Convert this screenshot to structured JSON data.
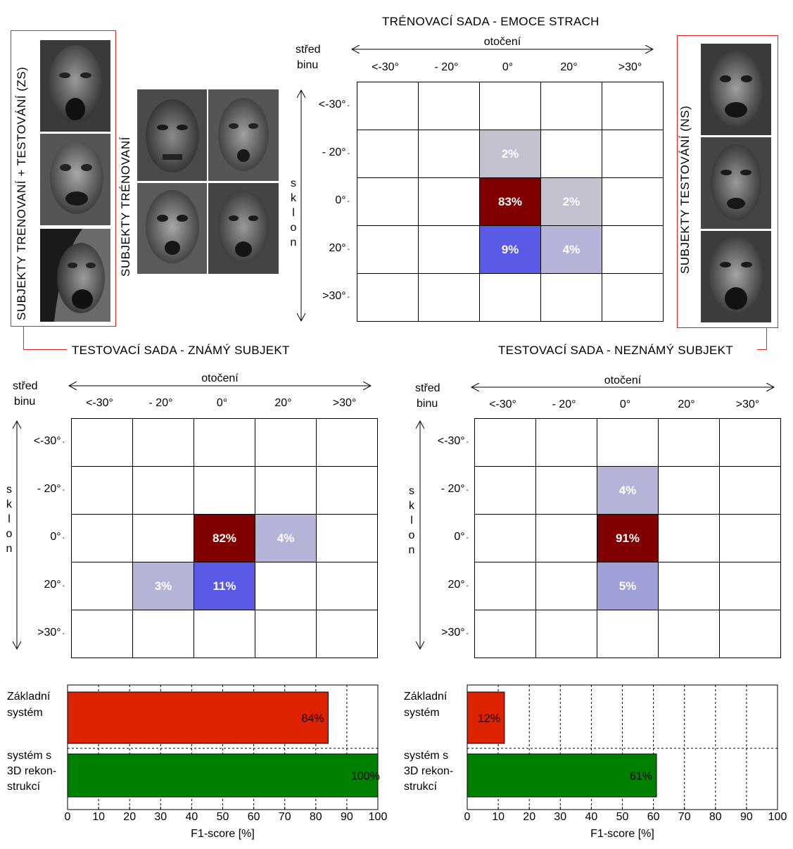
{
  "top_title": "TRÉNOVACÍ SADA - EMOCE STRACH",
  "left_panel_label": "SUBJEKTY TRENOVANÍ + TESTOVÁNÍ (ZS)",
  "middle_panel_label": "SUBJEKTY TRÉNOVANÍ",
  "right_panel_label": "SUBJEKTY TESTOVÁNÍ  (NS)",
  "known_title": "TESTOVACÍ SADA - ZNÁMÝ SUBJEKT",
  "unknown_title": "TESTOVACÍ SADA - NEZNÁMÝ SUBJEKT",
  "axis": {
    "col_header": "otočení",
    "row_header_line1": "střed",
    "row_header_line2": "binu",
    "row_axis_label": [
      "s",
      "k",
      "l",
      "o",
      "n"
    ],
    "col_labels": [
      "<-30°",
      "- 20°",
      "0°",
      "20°",
      ">30°"
    ],
    "row_labels": [
      "<-30°",
      "- 20°",
      "0°",
      "20°",
      ">30°"
    ]
  },
  "colors": {
    "dark_red": "#800000",
    "blue": "#5a5ae6",
    "lavender": "#b4b4d8",
    "lavender_light": "#c4c0d0",
    "bar_red": "#dd2200",
    "bar_green": "#008000",
    "frame_red": "#dd2222"
  },
  "chart_data": [
    {
      "type": "heatmap",
      "title": "TRÉNOVACÍ SADA - EMOCE STRACH",
      "xlabel": "otočení",
      "ylabel": "sklon",
      "x": [
        "<-30°",
        "- 20°",
        "0°",
        "20°",
        ">30°"
      ],
      "y": [
        "<-30°",
        "- 20°",
        "0°",
        "20°",
        ">30°"
      ],
      "cells": [
        {
          "row": 1,
          "col": 2,
          "value": 2,
          "label": "2%",
          "color": "#c4c0d0"
        },
        {
          "row": 2,
          "col": 2,
          "value": 83,
          "label": "83%",
          "color": "#800000"
        },
        {
          "row": 2,
          "col": 3,
          "value": 2,
          "label": "2%",
          "color": "#c4c0d0"
        },
        {
          "row": 3,
          "col": 2,
          "value": 9,
          "label": "9%",
          "color": "#5a5ae6"
        },
        {
          "row": 3,
          "col": 3,
          "value": 4,
          "label": "4%",
          "color": "#b4b4d8"
        }
      ]
    },
    {
      "type": "heatmap",
      "title": "TESTOVACÍ SADA - ZNÁMÝ SUBJEKT",
      "xlabel": "otočení",
      "ylabel": "sklon",
      "x": [
        "<-30°",
        "- 20°",
        "0°",
        "20°",
        ">30°"
      ],
      "y": [
        "<-30°",
        "- 20°",
        "0°",
        "20°",
        ">30°"
      ],
      "cells": [
        {
          "row": 2,
          "col": 2,
          "value": 82,
          "label": "82%",
          "color": "#800000"
        },
        {
          "row": 2,
          "col": 3,
          "value": 4,
          "label": "4%",
          "color": "#b4b4d8"
        },
        {
          "row": 3,
          "col": 1,
          "value": 3,
          "label": "3%",
          "color": "#b4b4d8"
        },
        {
          "row": 3,
          "col": 2,
          "value": 11,
          "label": "11%",
          "color": "#5a5ae6"
        }
      ]
    },
    {
      "type": "heatmap",
      "title": "TESTOVACÍ SADA - NEZNÁMÝ SUBJEKT",
      "xlabel": "otočení",
      "ylabel": "sklon",
      "x": [
        "<-30°",
        "- 20°",
        "0°",
        "20°",
        ">30°"
      ],
      "y": [
        "<-30°",
        "- 20°",
        "0°",
        "20°",
        ">30°"
      ],
      "cells": [
        {
          "row": 1,
          "col": 2,
          "value": 4,
          "label": "4%",
          "color": "#b4b4d8"
        },
        {
          "row": 2,
          "col": 2,
          "value": 91,
          "label": "91%",
          "color": "#800000"
        },
        {
          "row": 3,
          "col": 2,
          "value": 5,
          "label": "5%",
          "color": "#a0a0d8"
        }
      ]
    },
    {
      "type": "bar",
      "orientation": "horizontal",
      "categories": [
        "Základní systém",
        "systém s 3D rekon-strukcí"
      ],
      "category_lines": [
        [
          "Základní",
          "systém"
        ],
        [
          "systém s",
          "3D rekon-",
          "strukcí"
        ]
      ],
      "values": [
        84,
        100
      ],
      "labels": [
        "84%",
        "100%"
      ],
      "colors": [
        "#dd2200",
        "#008000"
      ],
      "xlabel": "F1-score [%]",
      "xlim": [
        0,
        100
      ],
      "xticks": [
        0,
        10,
        20,
        30,
        40,
        50,
        60,
        70,
        80,
        90,
        100
      ],
      "grid": true
    },
    {
      "type": "bar",
      "orientation": "horizontal",
      "categories": [
        "Základní systém",
        "systém s 3D rekon-strukcí"
      ],
      "category_lines": [
        [
          "Základní",
          "systém"
        ],
        [
          "systém s",
          "3D rekon-",
          "strukcí"
        ]
      ],
      "values": [
        12,
        61
      ],
      "labels": [
        "12%",
        "61%"
      ],
      "colors": [
        "#dd2200",
        "#008000"
      ],
      "xlabel": "F1-score [%]",
      "xlim": [
        0,
        100
      ],
      "xticks": [
        0,
        10,
        20,
        30,
        40,
        50,
        60,
        70,
        80,
        90,
        100
      ],
      "grid": true
    }
  ]
}
